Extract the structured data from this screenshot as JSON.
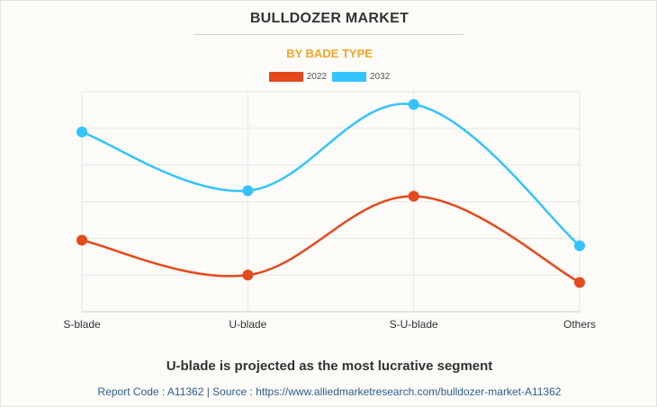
{
  "header": {
    "title": "BULLDOZER MARKET",
    "subtitle": "BY BADE TYPE",
    "subtitle_color": "#f5a623"
  },
  "chart_data": {
    "type": "line",
    "categories": [
      "S-blade",
      "U-blade",
      "S-U-blade",
      "Others"
    ],
    "series": [
      {
        "name": "2022",
        "color": "#e44a1c",
        "values": [
          19.5,
          10,
          31.5,
          8
        ]
      },
      {
        "name": "2032",
        "color": "#33c4ff",
        "values": [
          49,
          33,
          56.5,
          18
        ]
      }
    ],
    "ylim": [
      0,
      60
    ],
    "yticks": [
      0,
      10,
      20,
      30,
      40,
      50,
      60
    ],
    "grid": true,
    "legend_position": "top-center",
    "smooth": true
  },
  "headline": "U-blade is projected as the most lucrative segment",
  "footer": "Report Code : A11362  |  Source : https://www.alliedmarketresearch.com/bulldozer-market-A11362"
}
